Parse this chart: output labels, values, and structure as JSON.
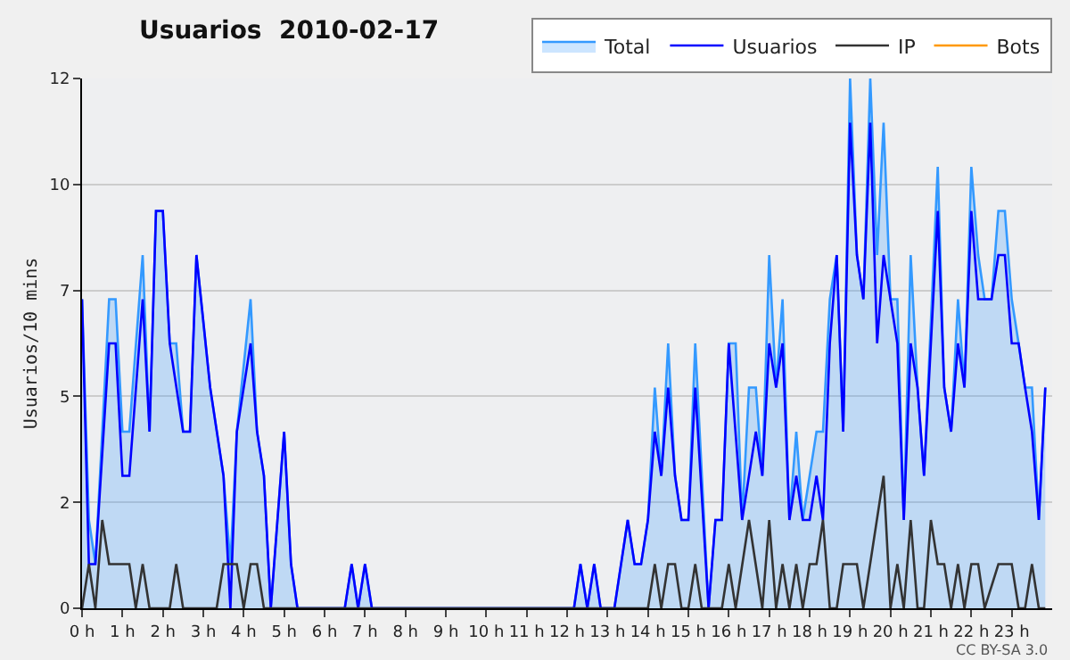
{
  "chart_data": {
    "type": "line",
    "title": "Usuarios  2010-02-17",
    "ylabel": "Usuarios/10 mins",
    "annotations": [
      "CC BY-SA 3.0"
    ],
    "xlim": [
      0,
      24
    ],
    "xticks": [
      {
        "value": 0,
        "label": "0 h"
      },
      {
        "value": 1,
        "label": "1 h"
      },
      {
        "value": 2,
        "label": "2 h"
      },
      {
        "value": 3,
        "label": "3 h"
      },
      {
        "value": 4,
        "label": "4 h"
      },
      {
        "value": 5,
        "label": "5 h"
      },
      {
        "value": 6,
        "label": "6 h"
      },
      {
        "value": 7,
        "label": "7 h"
      },
      {
        "value": 8,
        "label": "8 h"
      },
      {
        "value": 9,
        "label": "9 h"
      },
      {
        "value": 10,
        "label": "10 h"
      },
      {
        "value": 11,
        "label": "11 h"
      },
      {
        "value": 12,
        "label": "12 h"
      },
      {
        "value": 13,
        "label": "13 h"
      },
      {
        "value": 14,
        "label": "14 h"
      },
      {
        "value": 15,
        "label": "15 h"
      },
      {
        "value": 16,
        "label": "16 h"
      },
      {
        "value": 17,
        "label": "17 h"
      },
      {
        "value": 18,
        "label": "18 h"
      },
      {
        "value": 19,
        "label": "19 h"
      },
      {
        "value": 20,
        "label": "20 h"
      },
      {
        "value": 21,
        "label": "21 h"
      },
      {
        "value": 22,
        "label": "22 h"
      },
      {
        "value": 23,
        "label": "23 h"
      }
    ],
    "ylim": [
      0,
      12
    ],
    "yticks": [
      0,
      {
        "value": 2.4,
        "label": "2"
      },
      {
        "value": 4.8,
        "label": "5"
      },
      {
        "value": 7.2,
        "label": "7"
      },
      {
        "value": 9.6,
        "label": "10"
      },
      12
    ],
    "grid": "y",
    "legend": "top right",
    "marker": "none",
    "line_style": "solid",
    "series": [
      {
        "name": "Total",
        "type": "area",
        "color": "#3399ff",
        "x": [
          0,
          0.17,
          0.33,
          0.67,
          0.83,
          1,
          1.17,
          1.5,
          1.67,
          1.83,
          2,
          2.17,
          2.33,
          2.5,
          2.67,
          2.83,
          3.17,
          3.5,
          3.67,
          3.83,
          4.17,
          4.33,
          4.5,
          4.67,
          5,
          5.17,
          5.33,
          6.5,
          6.67,
          6.83,
          7,
          7.17,
          12.17,
          12.33,
          12.5,
          12.67,
          12.83,
          13.17,
          13.5,
          13.67,
          13.83,
          14,
          14.17,
          14.33,
          14.5,
          14.67,
          14.83,
          15,
          15.17,
          15.5,
          15.67,
          15.83,
          16,
          16.17,
          16.33,
          16.5,
          16.67,
          16.83,
          17,
          17.17,
          17.33,
          17.5,
          17.67,
          17.83,
          18,
          18.17,
          18.33,
          18.5,
          18.67,
          18.83,
          19,
          19.17,
          19.33,
          19.5,
          19.67,
          19.83,
          20,
          20.17,
          20.33,
          20.5,
          20.67,
          20.83,
          21.17,
          21.33,
          21.5,
          21.67,
          21.83,
          22,
          22.17,
          22.33,
          22.5,
          22.67,
          22.83,
          23,
          23.17,
          23.33,
          23.5,
          23.67,
          23.83
        ],
        "values": [
          7,
          2,
          1,
          7,
          7,
          4,
          4,
          8,
          4,
          9,
          9,
          6,
          6,
          4,
          4,
          8,
          5,
          3,
          1,
          4,
          7,
          4,
          3,
          0,
          4,
          1,
          0,
          0,
          1,
          0,
          1,
          0,
          0,
          1,
          0,
          1,
          0,
          0,
          2,
          1,
          1,
          2,
          5,
          3,
          6,
          3,
          2,
          2,
          6,
          0,
          2,
          2,
          6,
          6,
          2,
          5,
          5,
          3,
          8,
          5,
          7,
          2,
          4,
          2,
          3,
          4,
          4,
          7,
          8,
          4,
          12,
          8,
          7,
          12,
          8,
          11,
          7,
          7,
          2,
          8,
          5,
          3,
          10,
          5,
          4,
          7,
          5,
          10,
          8,
          7,
          7,
          9,
          9,
          7,
          6,
          5,
          5,
          2,
          5
        ]
      },
      {
        "name": "Usuarios",
        "color": "#0000ff",
        "x": [
          0,
          0.17,
          0.33,
          0.67,
          0.83,
          1,
          1.17,
          1.5,
          1.67,
          1.83,
          2,
          2.17,
          2.5,
          2.67,
          2.83,
          3.17,
          3.5,
          3.67,
          3.83,
          4.17,
          4.33,
          4.5,
          4.67,
          5,
          5.17,
          5.33,
          6.5,
          6.67,
          6.83,
          7,
          7.17,
          12.17,
          12.33,
          12.5,
          12.67,
          12.83,
          13.17,
          13.5,
          13.67,
          13.83,
          14,
          14.17,
          14.33,
          14.5,
          14.67,
          14.83,
          15,
          15.17,
          15.5,
          15.67,
          15.83,
          16,
          16.33,
          16.5,
          16.67,
          16.83,
          17,
          17.17,
          17.33,
          17.5,
          17.67,
          17.83,
          18,
          18.17,
          18.33,
          18.5,
          18.67,
          18.83,
          19,
          19.17,
          19.33,
          19.5,
          19.67,
          19.83,
          20,
          20.17,
          20.33,
          20.5,
          20.67,
          20.83,
          21.17,
          21.33,
          21.5,
          21.67,
          21.83,
          22,
          22.17,
          22.5,
          22.67,
          22.83,
          23,
          23.17,
          23.33,
          23.5,
          23.67,
          23.83
        ],
        "values": [
          7,
          1,
          1,
          6,
          6,
          3,
          3,
          7,
          4,
          9,
          9,
          6,
          4,
          4,
          8,
          5,
          3,
          0,
          4,
          6,
          4,
          3,
          0,
          4,
          1,
          0,
          0,
          1,
          0,
          1,
          0,
          0,
          1,
          0,
          1,
          0,
          0,
          2,
          1,
          1,
          2,
          4,
          3,
          5,
          3,
          2,
          2,
          5,
          0,
          2,
          2,
          6,
          2,
          3,
          4,
          3,
          6,
          5,
          6,
          2,
          3,
          2,
          2,
          3,
          2,
          6,
          8,
          4,
          11,
          8,
          7,
          11,
          6,
          8,
          7,
          6,
          2,
          6,
          5,
          3,
          9,
          5,
          4,
          6,
          5,
          9,
          7,
          7,
          8,
          8,
          6,
          6,
          5,
          4,
          2,
          5
        ]
      },
      {
        "name": "IP",
        "color": "#333333",
        "x": [
          0,
          0.17,
          0.33,
          0.5,
          0.67,
          1.17,
          1.33,
          1.5,
          1.67,
          2.17,
          2.33,
          2.5,
          3.33,
          3.5,
          3.83,
          4,
          4.17,
          4.33,
          4.5,
          14,
          14.17,
          14.33,
          14.5,
          14.67,
          14.83,
          15,
          15.17,
          15.33,
          15.83,
          16,
          16.17,
          16.5,
          16.83,
          17,
          17.17,
          17.33,
          17.5,
          17.67,
          17.83,
          18,
          18.17,
          18.33,
          18.5,
          18.67,
          18.83,
          19.17,
          19.33,
          19.83,
          20,
          20.17,
          20.33,
          20.5,
          20.67,
          20.83,
          21,
          21.17,
          21.33,
          21.5,
          21.67,
          21.83,
          22,
          22.17,
          22.33,
          22.67,
          22.83,
          23,
          23.17,
          23.33,
          23.5,
          23.67,
          23.83
        ],
        "values": [
          0,
          1,
          0,
          2,
          1,
          1,
          0,
          1,
          0,
          0,
          1,
          0,
          0,
          1,
          1,
          0,
          1,
          1,
          0,
          0,
          1,
          0,
          1,
          1,
          0,
          0,
          1,
          0,
          0,
          1,
          0,
          2,
          0,
          2,
          0,
          1,
          0,
          1,
          0,
          1,
          1,
          2,
          0,
          0,
          1,
          1,
          0,
          3,
          0,
          1,
          0,
          2,
          0,
          0,
          2,
          1,
          1,
          0,
          1,
          0,
          1,
          1,
          0,
          1,
          1,
          1,
          0,
          0,
          1,
          0,
          0
        ]
      },
      {
        "name": "Bots",
        "color": "#ff9900"
      }
    ]
  }
}
